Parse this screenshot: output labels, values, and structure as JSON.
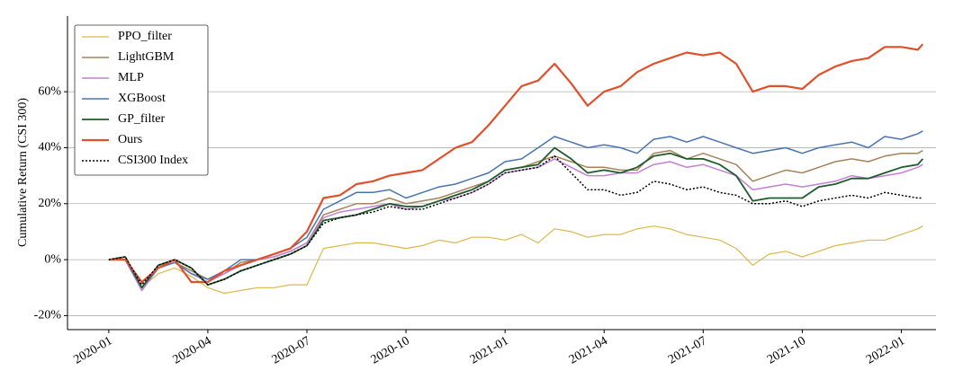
{
  "chart_data": {
    "type": "line",
    "ylabel": "Cumulative Return (CSI 300)",
    "x": [
      0,
      0.5,
      1,
      1.5,
      2,
      2.5,
      3,
      3.5,
      4,
      4.5,
      5,
      5.5,
      6,
      6.5,
      7,
      7.5,
      8,
      8.5,
      9,
      9.5,
      10,
      10.5,
      11,
      11.5,
      12,
      12.5,
      13,
      13.5,
      14,
      14.5,
      15,
      15.5,
      16,
      16.5,
      17,
      17.5,
      18,
      18.5,
      19,
      19.5,
      20,
      20.5,
      21,
      21.5,
      22,
      22.5,
      23,
      23.5,
      24,
      24.5,
      24.65
    ],
    "xlim": [
      -1.25,
      25.05
    ],
    "xticks": [
      {
        "value": 0,
        "label": "2020-01"
      },
      {
        "value": 3,
        "label": "2020-04"
      },
      {
        "value": 6,
        "label": "2020-07"
      },
      {
        "value": 9,
        "label": "2020-10"
      },
      {
        "value": 12,
        "label": "2021-01"
      },
      {
        "value": 15,
        "label": "2021-04"
      },
      {
        "value": 18,
        "label": "2021-07"
      },
      {
        "value": 21,
        "label": "2021-10"
      },
      {
        "value": 24,
        "label": "2022-01"
      }
    ],
    "ylim": [
      -25,
      87
    ],
    "yticks": [
      {
        "value": -20,
        "label": "-20%"
      },
      {
        "value": 0,
        "label": "0%"
      },
      {
        "value": 20,
        "label": "20%"
      },
      {
        "value": 40,
        "label": "40%"
      },
      {
        "value": 60,
        "label": "60%"
      }
    ],
    "grid": "y",
    "legend": "upper left",
    "series": [
      {
        "name": "PPO_filter",
        "color": "#dcb84c",
        "width": 1.2,
        "values": [
          0,
          0,
          -10,
          -5,
          -3,
          -6,
          -10,
          -12,
          -11,
          -10,
          -10,
          -9,
          -9,
          4,
          5,
          6,
          6,
          5,
          4,
          5,
          7,
          6,
          8,
          8,
          7,
          9,
          6,
          11,
          10,
          8,
          9,
          9,
          11,
          12,
          11,
          9,
          8,
          7,
          4,
          -2,
          2,
          3,
          1,
          3,
          5,
          6,
          7,
          7,
          9,
          11,
          12
        ]
      },
      {
        "name": "LightGBM",
        "color": "#a6835a",
        "width": 1.5,
        "values": [
          0,
          0,
          -11,
          -3,
          -1,
          -4,
          -7,
          -5,
          -1,
          0,
          1,
          3,
          6,
          16,
          18,
          20,
          20,
          22,
          20,
          21,
          22,
          24,
          26,
          28,
          32,
          33,
          35,
          37,
          35,
          33,
          33,
          32,
          32,
          38,
          39,
          36,
          38,
          36,
          34,
          28,
          30,
          32,
          31,
          33,
          35,
          36,
          35,
          37,
          38,
          38,
          39
        ]
      },
      {
        "name": "MLP",
        "color": "#c47fd6",
        "width": 1.5,
        "values": [
          0,
          0,
          -11,
          -3,
          -1,
          -5,
          -8,
          -5,
          -2,
          0,
          1,
          3,
          6,
          15,
          17,
          18,
          19,
          20,
          18,
          19,
          21,
          22,
          24,
          27,
          31,
          32,
          33,
          36,
          33,
          30,
          30,
          31,
          31,
          34,
          35,
          33,
          34,
          32,
          30,
          25,
          26,
          27,
          26,
          27,
          28,
          30,
          29,
          30,
          31,
          33,
          34
        ]
      },
      {
        "name": "XGBoost",
        "color": "#4a74b0",
        "width": 1.5,
        "values": [
          0,
          0,
          -10,
          -3,
          -1,
          -5,
          -7,
          -4,
          0,
          0,
          2,
          4,
          8,
          18,
          21,
          24,
          24,
          25,
          22,
          24,
          26,
          27,
          29,
          31,
          35,
          36,
          40,
          44,
          42,
          40,
          41,
          40,
          38,
          43,
          44,
          42,
          44,
          42,
          40,
          38,
          39,
          40,
          38,
          40,
          41,
          42,
          40,
          44,
          43,
          45,
          46
        ]
      },
      {
        "name": "GP_filter",
        "color": "#1e5c2c",
        "width": 1.8,
        "values": [
          0,
          1,
          -10,
          -2,
          0,
          -3,
          -9,
          -7,
          -4,
          -2,
          0,
          2,
          5,
          14,
          15,
          16,
          18,
          20,
          19,
          19,
          21,
          23,
          25,
          28,
          32,
          33,
          34,
          40,
          36,
          31,
          32,
          31,
          33,
          37,
          38,
          36,
          36,
          34,
          30,
          21,
          22,
          22,
          22,
          26,
          27,
          29,
          29,
          31,
          33,
          34,
          36
        ]
      },
      {
        "name": "Ours",
        "color": "#e0502a",
        "width": 2.2,
        "values": [
          0,
          0,
          -8,
          -3,
          0,
          -8,
          -8,
          -4,
          -2,
          0,
          2,
          4,
          10,
          22,
          23,
          27,
          28,
          30,
          31,
          32,
          36,
          40,
          42,
          48,
          55,
          62,
          64,
          70,
          63,
          55,
          60,
          62,
          67,
          70,
          72,
          74,
          73,
          74,
          70,
          60,
          62,
          62,
          61,
          66,
          69,
          71,
          72,
          76,
          76,
          75,
          77
        ]
      },
      {
        "name": "CSI300 Index",
        "color": "#000000",
        "width": 1.5,
        "dash": "dotted",
        "values": [
          0,
          1,
          -9,
          -2,
          0,
          -3,
          -9,
          -7,
          -4,
          -2,
          0,
          2,
          5,
          13,
          15,
          16,
          17,
          19,
          18,
          18,
          20,
          22,
          24,
          27,
          31,
          32,
          33,
          37,
          31,
          25,
          25,
          23,
          24,
          28,
          27,
          25,
          26,
          24,
          23,
          20,
          20,
          21,
          19,
          21,
          22,
          23,
          22,
          24,
          23,
          22,
          22
        ]
      }
    ]
  }
}
